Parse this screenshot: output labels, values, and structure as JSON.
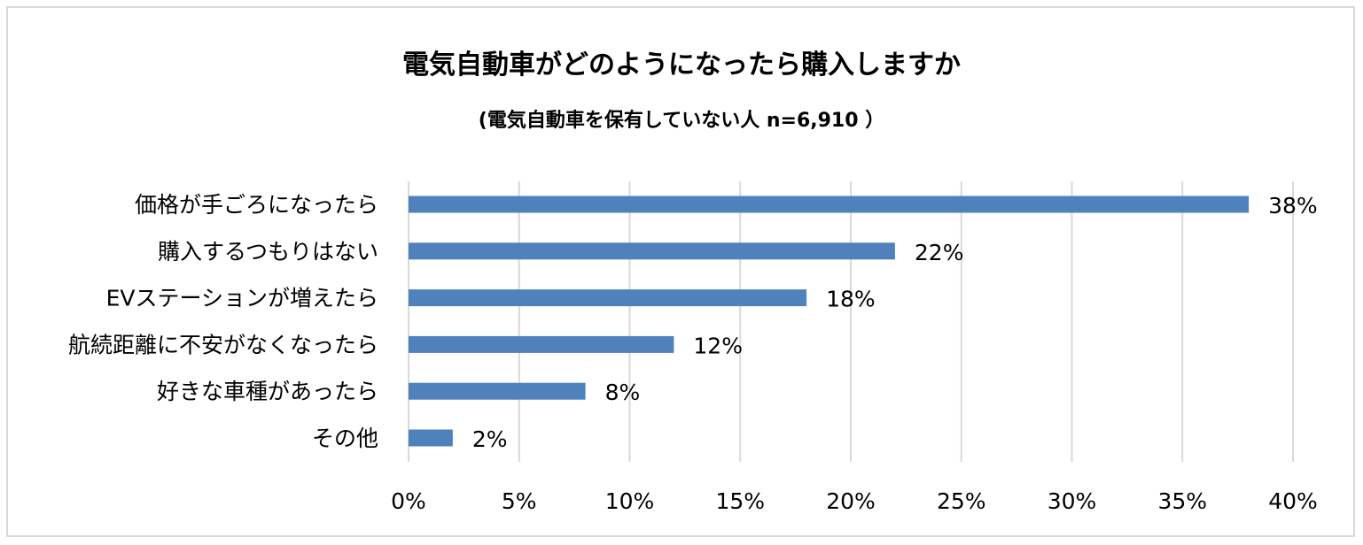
{
  "chart_data": {
    "type": "bar",
    "orientation": "horizontal",
    "title": "電気自動車がどのようになったら購入しますか",
    "subtitle": "(電気自動車を保有していない人 n=6,910 ）",
    "categories": [
      "価格が手ごろになったら",
      "購入するつもりはない",
      "EVステーションが増えたら",
      "航続距離に不安がなくなったら",
      "好きな車種があったら",
      "その他"
    ],
    "values": [
      38,
      22,
      18,
      12,
      8,
      2
    ],
    "value_labels": [
      "38%",
      "22%",
      "18%",
      "12%",
      "8%",
      "2%"
    ],
    "xlim": [
      0,
      40
    ],
    "xticks": [
      0,
      5,
      10,
      15,
      20,
      25,
      30,
      35,
      40
    ],
    "xtick_labels": [
      "0%",
      "5%",
      "10%",
      "15%",
      "20%",
      "25%",
      "30%",
      "35%",
      "40%"
    ],
    "grid": true,
    "bar_color": "#4f81bd",
    "grid_color": "#d9d9d9"
  }
}
